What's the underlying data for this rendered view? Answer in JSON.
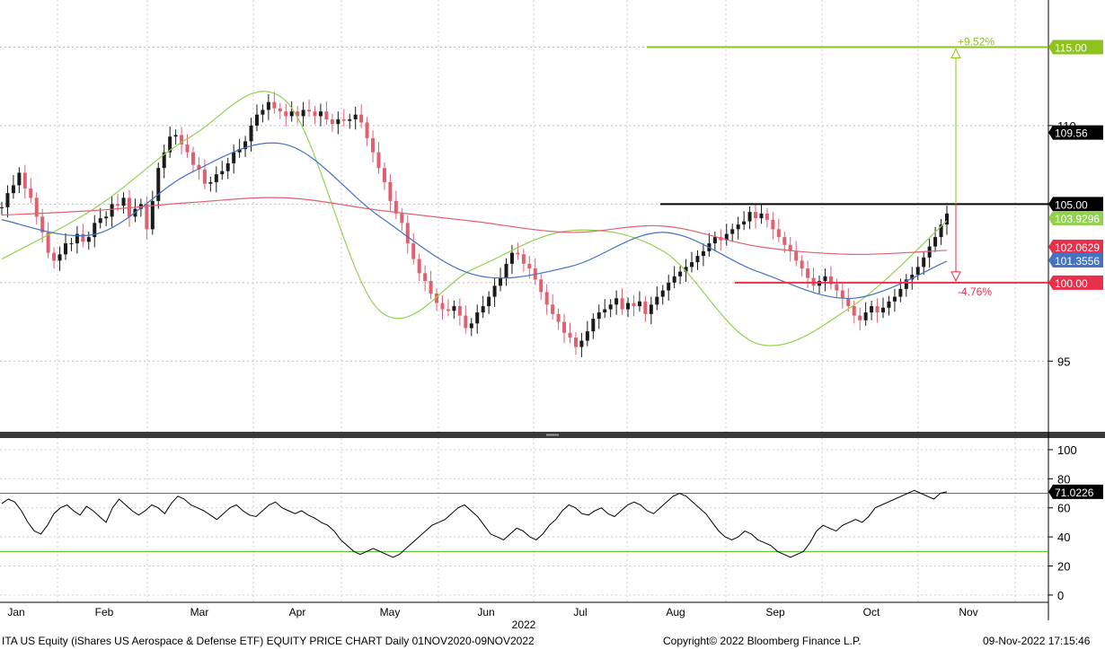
{
  "chart_data": {
    "type": "candlestick",
    "frequency": "Daily",
    "x_year_label": "2022",
    "month_labels": [
      "Jan",
      "Feb",
      "Mar",
      "Apr",
      "May",
      "Jun",
      "Jul",
      "Aug",
      "Sep",
      "Oct",
      "Nov"
    ],
    "price_axis": {
      "ylim": [
        90.5,
        118
      ],
      "ticks": [
        95,
        100,
        105,
        110,
        115
      ],
      "tick_labels": [
        "95",
        "110"
      ]
    },
    "start_price": 104.8,
    "candles": [
      0.0,
      0.9,
      0.5,
      0.8,
      -1.0,
      -0.6,
      -1.2,
      -1.0,
      -1.3,
      -0.5,
      0.4,
      0.7,
      0.0,
      0.6,
      -0.5,
      0.3,
      0.9,
      0.3,
      0.1,
      0.8,
      -0.1,
      0.5,
      -1.2,
      0.5,
      0.3,
      -1.6,
      1.8,
      2.1,
      1.0,
      1.0,
      0.1,
      -0.6,
      -0.5,
      -0.8,
      -0.3,
      -0.9,
      0.1,
      0.5,
      0.2,
      0.5,
      0.7,
      0.2,
      0.5,
      1.0,
      0.7,
      0.3,
      0.5,
      -0.4,
      -0.2,
      -0.3,
      0.3,
      -0.3,
      0.4,
      -0.1,
      -0.3,
      0.3,
      -0.5,
      -0.3,
      0.3,
      -0.1,
      0.1,
      0.3,
      -0.5,
      -1.0,
      -0.9,
      -1.0,
      -0.9,
      -1.2,
      -0.8,
      -0.6,
      -1.3,
      -1.0,
      -0.9,
      -0.5,
      -0.8,
      -0.6,
      -0.4,
      -0.1,
      0.3,
      -0.6,
      -0.8,
      0.3,
      0.7,
      0.4,
      0.6,
      0.7,
      0.5,
      0.9,
      0.7,
      -0.1,
      -0.6,
      -0.3,
      -0.7,
      -0.8,
      -0.8,
      -0.6,
      -0.5,
      -0.7,
      -0.3,
      -0.6,
      0.4,
      0.6,
      0.8,
      0.4,
      0.2,
      0.3,
      0.4,
      -0.7,
      0.4,
      -0.2,
      0.3,
      -0.8,
      0.6,
      0.5,
      0.4,
      0.5,
      0.4,
      0.3,
      0.3,
      0.3,
      0.4,
      0.3,
      0.5,
      0.4,
      -0.2,
      0.4,
      0.3,
      0.3,
      0.2,
      0.6,
      -0.4,
      0.3,
      -0.4,
      -0.6,
      -0.5,
      -0.5,
      -0.4,
      -0.6,
      -0.5,
      -0.6,
      -0.5,
      0.3,
      0.3,
      -0.5,
      -0.4,
      -0.5,
      -0.5,
      -0.6,
      -0.3,
      0.5,
      0.4,
      -0.4,
      0.3,
      0.4,
      0.3,
      0.5,
      0.6,
      0.3,
      0.5,
      0.6,
      0.7,
      0.6,
      0.8,
      0.7
    ],
    "candle_dates": [
      "2021-12-30",
      "2022-10-26"
    ],
    "moving_averages": [
      {
        "color": "#92d050",
        "values": [
          101.5,
          104.8,
          109.3,
          111.6,
          98.2,
          100.9,
          103.3,
          102.0,
          96.1,
          98.5,
          103.93
        ]
      },
      {
        "color": "#4472c4",
        "values": [
          104.0,
          103.1,
          107.0,
          108.8,
          104.2,
          100.5,
          101.0,
          103.2,
          100.7,
          99.0,
          101.36
        ]
      },
      {
        "color": "#e06070",
        "values": [
          104.3,
          104.6,
          105.1,
          105.4,
          104.6,
          103.9,
          103.2,
          103.6,
          102.3,
          101.8,
          102.06
        ]
      }
    ],
    "levels": [
      {
        "value": 115.0,
        "label": "115.00",
        "color": "#8dc21f"
      },
      {
        "value": 105.0,
        "label": "105.00",
        "color": "#000000"
      },
      {
        "value": 100.0,
        "label": "100.00",
        "color": "#e8304a"
      }
    ],
    "last_values": [
      {
        "value": 109.56,
        "label": "109.56",
        "color": "#000000"
      },
      {
        "value": 103.93,
        "label": "103.9296",
        "color": "#92d050"
      },
      {
        "value": 102.06,
        "label": "102.0629",
        "color": "#e8304a"
      },
      {
        "value": 101.36,
        "label": "101.3556",
        "color": "#4472c4"
      }
    ],
    "annotations": [
      {
        "text": "+9.52%",
        "color": "#8dc21f"
      },
      {
        "text": "-4.76%",
        "color": "#e8304a"
      }
    ],
    "rsi": {
      "ylim": [
        -5,
        108
      ],
      "ticks": [
        0,
        20,
        40,
        60,
        80,
        100
      ],
      "tick_labels": [
        "0",
        "20",
        "40",
        "60",
        "80",
        "100"
      ],
      "upper_band": 70,
      "lower_band": 30,
      "last_value": 71.02,
      "last_label": "71.0226",
      "values": [
        63,
        66,
        64,
        58,
        50,
        44,
        42,
        48,
        56,
        60,
        62,
        58,
        55,
        61,
        58,
        54,
        50,
        60,
        66,
        62,
        58,
        55,
        58,
        62,
        60,
        56,
        63,
        68,
        66,
        62,
        60,
        58,
        55,
        52,
        56,
        60,
        62,
        58,
        55,
        54,
        58,
        62,
        64,
        60,
        58,
        56,
        58,
        55,
        53,
        50,
        48,
        44,
        38,
        34,
        30,
        28,
        30,
        32,
        30,
        28,
        26,
        28,
        32,
        36,
        40,
        44,
        48,
        50,
        52,
        56,
        60,
        62,
        58,
        54,
        48,
        42,
        40,
        38,
        42,
        46,
        44,
        40,
        38,
        42,
        48,
        52,
        58,
        62,
        60,
        56,
        55,
        58,
        60,
        56,
        54,
        58,
        62,
        64,
        62,
        58,
        56,
        60,
        64,
        68,
        70,
        68,
        64,
        60,
        56,
        50,
        44,
        40,
        38,
        40,
        44,
        42,
        38,
        36,
        34,
        30,
        28,
        26,
        28,
        30,
        36,
        44,
        48,
        46,
        44,
        48,
        50,
        52,
        50,
        54,
        60,
        62,
        64,
        66,
        68,
        70,
        72,
        70,
        68,
        66,
        70,
        71
      ]
    }
  },
  "header": {
    "left": "ITA US Equity (iShares US Aerospace & Defense ETF) EQUITY PRICE CHART  Daily 01NOV2020-09NOV2022",
    "center": "Copyright© 2022 Bloomberg Finance L.P.",
    "right": "09-Nov-2022 17:15:46"
  }
}
